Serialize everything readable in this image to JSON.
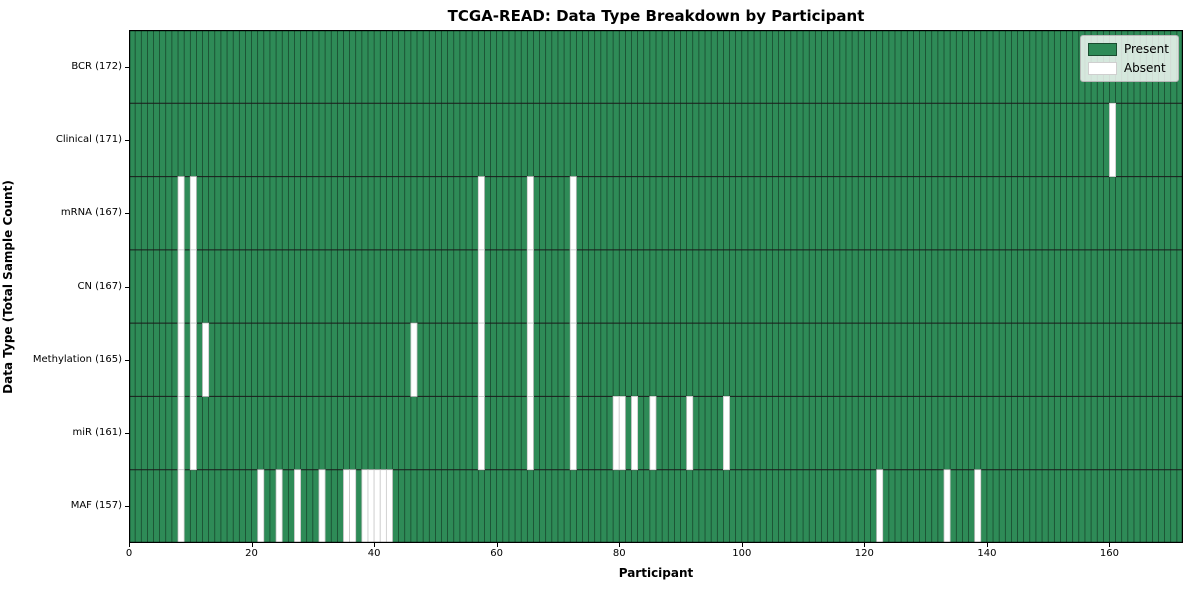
{
  "chart_data": {
    "type": "heatmap",
    "title": "TCGA-READ: Data Type Breakdown by Participant",
    "xlabel": "Participant",
    "ylabel": "Data Type (Total Sample Count)",
    "xlim": [
      0,
      172
    ],
    "x_ticks": [
      0,
      20,
      40,
      60,
      80,
      100,
      120,
      140,
      160
    ],
    "n_participants": 172,
    "grid": true,
    "legend_position": "upper right",
    "legend": [
      {
        "label": "Present",
        "color": "#2e8b57"
      },
      {
        "label": "Absent",
        "color": "#ffffff"
      }
    ],
    "colors": {
      "present": "#2e8b57",
      "absent": "#ffffff",
      "grid_line": "rgba(0,0,0,0.55)",
      "row_divider": "#1a1a1a",
      "absent_edge": "#c9c9c9",
      "frame": "#000000"
    },
    "rows": [
      {
        "name": "BCR",
        "label": "BCR (172)",
        "total": 172,
        "absent_participants": []
      },
      {
        "name": "Clinical",
        "label": "Clinical (171)",
        "total": 171,
        "absent_participants": [
          160
        ]
      },
      {
        "name": "mRNA",
        "label": "mRNA (167)",
        "total": 167,
        "absent_participants": [
          8,
          10,
          57,
          65,
          72
        ]
      },
      {
        "name": "CN",
        "label": "CN (167)",
        "total": 167,
        "absent_participants": [
          8,
          10,
          57,
          65,
          72
        ]
      },
      {
        "name": "Methylation",
        "label": "Methylation (165)",
        "total": 165,
        "absent_participants": [
          8,
          10,
          12,
          46,
          57,
          65,
          72
        ]
      },
      {
        "name": "miR",
        "label": "miR (161)",
        "total": 161,
        "absent_participants": [
          8,
          10,
          57,
          65,
          72,
          79,
          80,
          82,
          85,
          91,
          97
        ]
      },
      {
        "name": "MAF",
        "label": "MAF (157)",
        "total": 157,
        "absent_participants": [
          8,
          21,
          24,
          27,
          31,
          35,
          36,
          38,
          39,
          40,
          41,
          42,
          122,
          133,
          138
        ]
      }
    ]
  }
}
